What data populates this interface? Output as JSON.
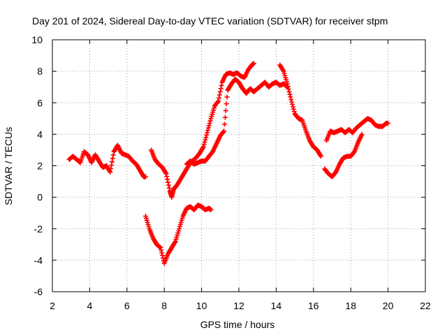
{
  "chart_data": {
    "type": "scatter",
    "title": "Day 201 of 2024, Sidereal Day-to-day VTEC variation (SDTVAR) for receiver stpm",
    "xlabel": "GPS time / hours",
    "ylabel": "SDTVAR / TECUs",
    "xlim": [
      2,
      22
    ],
    "ylim": [
      -6,
      10
    ],
    "xticks": [
      2,
      4,
      6,
      8,
      10,
      12,
      14,
      16,
      18,
      20,
      22
    ],
    "yticks": [
      -6,
      -4,
      -2,
      0,
      2,
      4,
      6,
      8,
      10
    ],
    "grid": true,
    "marker": "+",
    "color": "#ff0000",
    "series": [
      {
        "name": "seg-a",
        "x": [
          2.9,
          3.1,
          3.3,
          3.5,
          3.7,
          3.9,
          4.1,
          4.3,
          4.5,
          4.7,
          4.9,
          5.1,
          5.3,
          5.5,
          5.7,
          5.9,
          6.1,
          6.3,
          6.5,
          6.7,
          6.9,
          7.0
        ],
        "y": [
          2.4,
          2.6,
          2.4,
          2.2,
          2.9,
          2.7,
          2.2,
          2.7,
          2.3,
          1.9,
          2.0,
          1.6,
          2.9,
          3.3,
          2.8,
          2.7,
          2.6,
          2.3,
          2.1,
          1.7,
          1.3,
          1.3
        ]
      },
      {
        "name": "seg-b",
        "x": [
          7.0,
          7.2,
          7.4,
          7.6,
          7.8,
          8.0,
          8.2,
          8.4,
          8.6,
          8.8,
          9.0,
          9.2,
          9.4,
          9.6,
          9.8,
          10.0,
          10.2,
          10.4,
          10.5
        ],
        "y": [
          -1.2,
          -2.0,
          -2.6,
          -3.0,
          -3.2,
          -4.2,
          -3.6,
          -3.2,
          -2.8,
          -2.0,
          -1.2,
          -0.7,
          -0.6,
          -0.8,
          -0.5,
          -0.6,
          -0.8,
          -0.7,
          -0.8
        ]
      },
      {
        "name": "seg-c",
        "x": [
          7.3,
          7.5,
          7.7,
          7.9,
          8.1,
          8.3,
          8.4,
          8.5,
          8.7,
          8.9,
          9.1,
          9.3,
          9.5,
          9.7,
          9.9,
          10.1,
          10.3,
          10.5,
          10.7,
          10.9,
          11.1,
          11.3,
          11.5,
          11.7,
          11.9,
          12.1,
          12.3,
          12.5,
          12.7,
          12.8
        ],
        "y": [
          3.0,
          2.4,
          2.1,
          1.9,
          1.5,
          0.4,
          0.0,
          0.5,
          0.8,
          1.2,
          1.6,
          2.0,
          2.3,
          2.5,
          2.8,
          3.2,
          4.1,
          5.0,
          5.8,
          6.1,
          7.3,
          7.8,
          7.9,
          7.8,
          7.9,
          7.7,
          7.6,
          8.1,
          8.4,
          8.5
        ]
      },
      {
        "name": "seg-d",
        "x": [
          9.2,
          9.4,
          9.6,
          9.8,
          10.0,
          10.2,
          10.4,
          10.6,
          10.8,
          11.0,
          11.2,
          11.4,
          11.6,
          11.8,
          12.0,
          12.2,
          12.4,
          12.6,
          12.8,
          13.0,
          13.2,
          13.4,
          13.6,
          13.8,
          14.0,
          14.2,
          14.4,
          14.6
        ],
        "y": [
          2.1,
          2.3,
          2.1,
          2.2,
          2.3,
          2.3,
          2.6,
          2.9,
          3.4,
          3.9,
          4.2,
          6.8,
          7.2,
          7.5,
          7.3,
          6.9,
          6.6,
          6.9,
          6.7,
          6.9,
          7.1,
          7.3,
          7.0,
          7.2,
          7.3,
          7.1,
          7.2,
          7.0
        ]
      },
      {
        "name": "seg-e",
        "x": [
          14.2,
          14.4,
          14.6,
          14.8,
          15.0,
          15.2,
          15.4,
          15.6,
          15.8,
          16.0,
          16.2,
          16.4
        ],
        "y": [
          8.4,
          8.0,
          7.2,
          6.2,
          5.3,
          5.0,
          4.9,
          4.2,
          3.6,
          3.2,
          3.0,
          2.6
        ]
      },
      {
        "name": "seg-f",
        "x": [
          16.6,
          16.8,
          17.0,
          17.2,
          17.4,
          17.6,
          17.8,
          18.0,
          18.2,
          18.4,
          18.6
        ],
        "y": [
          1.8,
          1.5,
          1.3,
          1.6,
          2.1,
          2.5,
          2.6,
          2.6,
          2.9,
          3.5,
          4.0
        ]
      },
      {
        "name": "seg-g",
        "x": [
          16.7,
          16.9,
          17.1,
          17.3,
          17.5,
          17.7,
          17.9,
          18.1,
          18.3,
          18.5,
          18.7,
          18.9,
          19.1,
          19.3,
          19.5,
          19.7,
          19.9,
          20.0
        ],
        "y": [
          3.6,
          4.2,
          4.1,
          4.2,
          4.3,
          4.1,
          4.3,
          4.1,
          4.4,
          4.6,
          4.8,
          5.0,
          4.9,
          4.6,
          4.5,
          4.5,
          4.7,
          4.7
        ]
      }
    ]
  }
}
